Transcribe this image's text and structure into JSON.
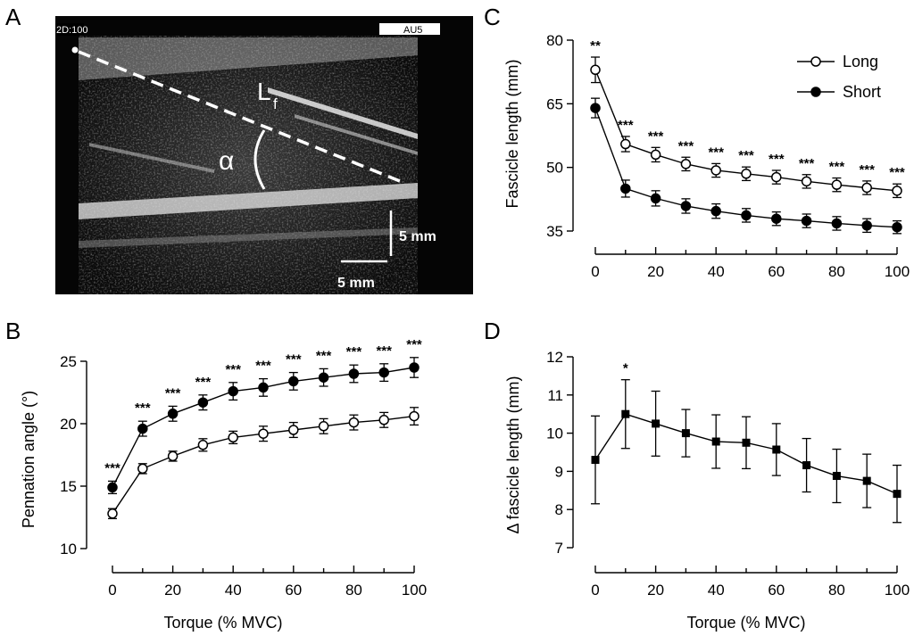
{
  "panel_letters": [
    "A",
    "B",
    "C",
    "D"
  ],
  "ultrasound": {
    "mode_label": "2D:100",
    "probe_label": "AU5",
    "fascicle_label": "L",
    "fascicle_sub": "f",
    "angle_label": "α",
    "scale_vertical": "5 mm",
    "scale_horizontal": "5 mm"
  },
  "chart_data": [
    {
      "panel": "B",
      "type": "line",
      "xlabel": "Torque (% MVC)",
      "ylabel": "Pennation angle (°)",
      "xlim": [
        0,
        100
      ],
      "ylim": [
        10,
        25
      ],
      "xticks": [
        0,
        20,
        40,
        60,
        80,
        100
      ],
      "yticks": [
        10,
        15,
        20,
        25
      ],
      "x": [
        0,
        10,
        20,
        30,
        40,
        50,
        60,
        70,
        80,
        90,
        100
      ],
      "series": [
        {
          "marker": "filled-circle",
          "values": [
            14.9,
            19.6,
            20.8,
            21.7,
            22.6,
            22.9,
            23.4,
            23.7,
            24.0,
            24.1,
            24.5
          ],
          "errors": [
            0.5,
            0.6,
            0.6,
            0.6,
            0.7,
            0.7,
            0.7,
            0.7,
            0.7,
            0.7,
            0.8
          ]
        },
        {
          "marker": "open-circle",
          "values": [
            12.8,
            16.4,
            17.4,
            18.3,
            18.9,
            19.2,
            19.5,
            19.8,
            20.1,
            20.3,
            20.6
          ],
          "errors": [
            0.4,
            0.4,
            0.4,
            0.5,
            0.5,
            0.6,
            0.6,
            0.6,
            0.6,
            0.6,
            0.7
          ]
        }
      ],
      "significance": [
        "***",
        "***",
        "***",
        "***",
        "***",
        "***",
        "***",
        "***",
        "***",
        "***",
        "***"
      ]
    },
    {
      "panel": "C",
      "type": "line",
      "xlabel": "",
      "ylabel": "Fascicle length (mm)",
      "xlim": [
        0,
        100
      ],
      "ylim": [
        35,
        80
      ],
      "xticks": [
        0,
        20,
        40,
        60,
        80,
        100
      ],
      "yticks": [
        35,
        50,
        65,
        80
      ],
      "x": [
        0,
        10,
        20,
        30,
        40,
        50,
        60,
        70,
        80,
        90,
        100
      ],
      "legend_position": "top-right",
      "series": [
        {
          "name": "Long",
          "marker": "open-circle",
          "values": [
            73.0,
            55.5,
            53.0,
            50.8,
            49.3,
            48.5,
            47.7,
            46.7,
            45.9,
            45.2,
            44.5
          ],
          "errors": [
            3.0,
            1.8,
            1.7,
            1.6,
            1.6,
            1.6,
            1.6,
            1.6,
            1.6,
            1.6,
            1.6
          ]
        },
        {
          "name": "Short",
          "marker": "filled-circle",
          "values": [
            64.0,
            45.0,
            42.7,
            40.9,
            39.7,
            38.7,
            37.9,
            37.4,
            36.8,
            36.3,
            35.9
          ],
          "errors": [
            2.3,
            2.0,
            1.8,
            1.7,
            1.7,
            1.6,
            1.6,
            1.6,
            1.6,
            1.6,
            1.5
          ]
        }
      ],
      "significance": [
        "**",
        "***",
        "***",
        "***",
        "***",
        "***",
        "***",
        "***",
        "***",
        "***",
        "***"
      ]
    },
    {
      "panel": "D",
      "type": "line",
      "xlabel": "Torque (% MVC)",
      "ylabel": "Δ fascicle length (mm)",
      "xlim": [
        0,
        100
      ],
      "ylim": [
        7,
        12
      ],
      "xticks": [
        0,
        20,
        40,
        60,
        80,
        100
      ],
      "yticks": [
        7,
        8,
        9,
        10,
        11,
        12
      ],
      "x": [
        0,
        10,
        20,
        30,
        40,
        50,
        60,
        70,
        80,
        90,
        100
      ],
      "series": [
        {
          "marker": "filled-square",
          "values": [
            9.3,
            10.5,
            10.25,
            10.0,
            9.78,
            9.75,
            9.57,
            9.16,
            8.88,
            8.75,
            8.41
          ],
          "errors": [
            1.15,
            0.9,
            0.85,
            0.62,
            0.7,
            0.68,
            0.68,
            0.7,
            0.7,
            0.7,
            0.75
          ]
        }
      ],
      "significance": [
        "",
        "*",
        "",
        "",
        "",
        "",
        "",
        "",
        "",
        "",
        ""
      ]
    }
  ]
}
